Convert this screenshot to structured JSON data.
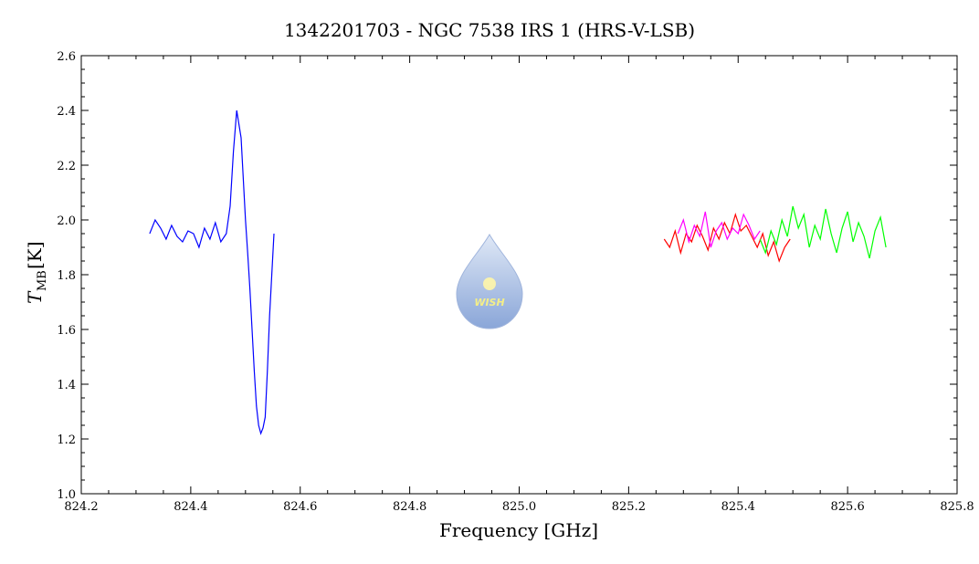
{
  "chart_data": {
    "type": "line",
    "title": "1342201703 - NGC 7538 IRS 1 (HRS-V-LSB)",
    "xlabel": "Frequency [GHz]",
    "ylabel_main": "T",
    "ylabel_sub": "MB",
    "ylabel_unit": "[K]",
    "xlim": [
      824.2,
      825.8
    ],
    "ylim": [
      1.0,
      2.6
    ],
    "x_ticks": [
      "824.2",
      "824.4",
      "824.6",
      "824.8",
      "825.0",
      "825.2",
      "825.4",
      "825.6",
      "825.8"
    ],
    "y_ticks": [
      "1.0",
      "1.2",
      "1.4",
      "1.6",
      "1.8",
      "2.0",
      "2.2",
      "2.4",
      "2.6"
    ],
    "grid": false,
    "logo_text": "WISH",
    "series": [
      {
        "color": "#0000ff",
        "x": [
          824.325,
          824.335,
          824.345,
          824.355,
          824.365,
          824.375,
          824.385,
          824.395,
          824.405,
          824.415,
          824.425,
          824.435,
          824.445,
          824.455,
          824.465,
          824.472,
          824.478,
          824.484,
          824.488,
          824.492,
          824.496,
          824.5,
          824.504,
          824.508,
          824.512,
          824.516,
          824.52,
          824.524,
          824.528,
          824.532,
          824.536,
          824.54,
          824.544,
          824.548,
          824.552
        ],
        "y": [
          1.95,
          2.0,
          1.97,
          1.93,
          1.98,
          1.94,
          1.92,
          1.96,
          1.95,
          1.9,
          1.97,
          1.93,
          1.99,
          1.92,
          1.95,
          2.05,
          2.25,
          2.4,
          2.35,
          2.3,
          2.15,
          2.0,
          1.88,
          1.75,
          1.6,
          1.45,
          1.32,
          1.25,
          1.22,
          1.24,
          1.28,
          1.45,
          1.65,
          1.8,
          1.95
        ]
      },
      {
        "color": "#ff0000",
        "x": [
          825.265,
          825.275,
          825.285,
          825.295,
          825.305,
          825.315,
          825.325,
          825.335,
          825.345,
          825.355,
          825.365,
          825.375,
          825.385,
          825.395,
          825.405,
          825.415,
          825.425,
          825.435,
          825.445,
          825.455,
          825.465,
          825.475,
          825.485,
          825.495
        ],
        "y": [
          1.93,
          1.9,
          1.96,
          1.88,
          1.95,
          1.92,
          1.98,
          1.94,
          1.89,
          1.97,
          1.93,
          1.99,
          1.95,
          2.02,
          1.96,
          1.98,
          1.94,
          1.9,
          1.95,
          1.87,
          1.92,
          1.85,
          1.9,
          1.93
        ]
      },
      {
        "color": "#ff00ff",
        "x": [
          825.29,
          825.3,
          825.31,
          825.32,
          825.33,
          825.34,
          825.35,
          825.36,
          825.37,
          825.38,
          825.39,
          825.4,
          825.41,
          825.42,
          825.43,
          825.44
        ],
        "y": [
          1.95,
          2.0,
          1.92,
          1.98,
          1.94,
          2.03,
          1.9,
          1.96,
          1.99,
          1.93,
          1.97,
          1.95,
          2.02,
          1.98,
          1.93,
          1.96
        ]
      },
      {
        "color": "#00ff00",
        "x": [
          825.44,
          825.45,
          825.46,
          825.47,
          825.48,
          825.49,
          825.5,
          825.51,
          825.52,
          825.53,
          825.54,
          825.55,
          825.56,
          825.57,
          825.58,
          825.59,
          825.6,
          825.61,
          825.62,
          825.63,
          825.64,
          825.65,
          825.66,
          825.67
        ],
        "y": [
          1.93,
          1.88,
          1.96,
          1.91,
          2.0,
          1.94,
          2.05,
          1.97,
          2.02,
          1.9,
          1.98,
          1.93,
          2.04,
          1.95,
          1.88,
          1.97,
          2.03,
          1.92,
          1.99,
          1.94,
          1.86,
          1.96,
          2.01,
          1.9
        ]
      }
    ]
  }
}
